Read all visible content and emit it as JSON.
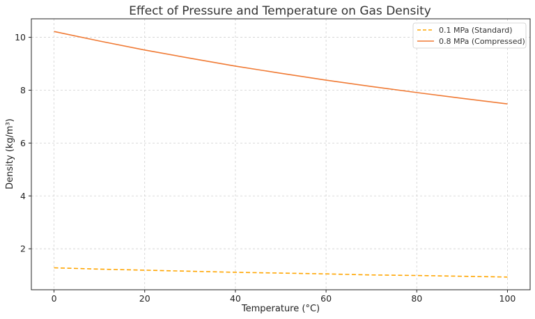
{
  "chart_data": {
    "type": "line",
    "title": "Effect of Pressure and Temperature on Gas Density",
    "xlabel": "Temperature (°C)",
    "ylabel": "Density (kg/m³)",
    "xlim": [
      -5,
      105
    ],
    "ylim": [
      0.45,
      10.7
    ],
    "xticks": [
      0,
      20,
      40,
      60,
      80,
      100
    ],
    "yticks": [
      2,
      4,
      6,
      8,
      10
    ],
    "grid": true,
    "legend_position": "top-right",
    "x": [
      0,
      10,
      20,
      30,
      40,
      50,
      60,
      70,
      80,
      90,
      100
    ],
    "series": [
      {
        "name": "0.1 MPa (Standard)",
        "color": "#FFA500",
        "style": "dashed",
        "values": [
          1.28,
          1.23,
          1.19,
          1.15,
          1.11,
          1.08,
          1.05,
          1.01,
          0.99,
          0.96,
          0.93
        ]
      },
      {
        "name": "0.8 MPa (Compressed)",
        "color": "#F07A34",
        "style": "solid",
        "values": [
          10.22,
          9.86,
          9.52,
          9.21,
          8.91,
          8.64,
          8.38,
          8.14,
          7.91,
          7.69,
          7.48
        ]
      }
    ]
  }
}
